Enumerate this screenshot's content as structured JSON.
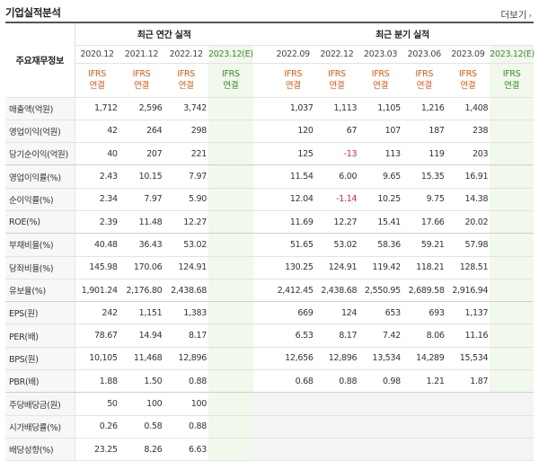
{
  "title": "기업실적분석",
  "more_label": "더보기",
  "header": {
    "row_label": "주요재무정보",
    "annual_group": "최근 연간 실적",
    "quarter_group": "최근 분기 실적",
    "annual_periods": [
      "2020.12",
      "2021.12",
      "2022.12",
      "2023.12(E)"
    ],
    "quarter_periods": [
      "2022.09",
      "2022.12",
      "2023.03",
      "2023.06",
      "2023.09",
      "2023.12(E)"
    ],
    "accounting_line1": "IFRS",
    "accounting_line2": "연결"
  },
  "rows": [
    {
      "label": "매출액(억원)",
      "annual": [
        "1,712",
        "2,596",
        "3,742",
        ""
      ],
      "quarter": [
        "1,037",
        "1,113",
        "1,105",
        "1,216",
        "1,408",
        ""
      ]
    },
    {
      "label": "영업이익(억원)",
      "annual": [
        "42",
        "264",
        "298",
        ""
      ],
      "quarter": [
        "120",
        "67",
        "107",
        "187",
        "238",
        ""
      ]
    },
    {
      "label": "당기순이익(억원)",
      "annual": [
        "40",
        "207",
        "221",
        ""
      ],
      "quarter": [
        "125",
        "-13",
        "113",
        "119",
        "203",
        ""
      ]
    },
    {
      "label": "영업이익률(%)",
      "annual": [
        "2.43",
        "10.15",
        "7.97",
        ""
      ],
      "quarter": [
        "11.54",
        "6.00",
        "9.65",
        "15.35",
        "16.91",
        ""
      ]
    },
    {
      "label": "순이익률(%)",
      "annual": [
        "2.34",
        "7.97",
        "5.90",
        ""
      ],
      "quarter": [
        "12.04",
        "-1.14",
        "10.25",
        "9.75",
        "14.38",
        ""
      ]
    },
    {
      "label": "ROE(%)",
      "annual": [
        "2.39",
        "11.48",
        "12.27",
        ""
      ],
      "quarter": [
        "11.69",
        "12.27",
        "15.41",
        "17.66",
        "20.02",
        ""
      ]
    },
    {
      "label": "부채비율(%)",
      "annual": [
        "40.48",
        "36.43",
        "53.02",
        ""
      ],
      "quarter": [
        "51.65",
        "53.02",
        "58.36",
        "59.21",
        "57.98",
        ""
      ]
    },
    {
      "label": "당좌비율(%)",
      "annual": [
        "145.98",
        "170.06",
        "124.91",
        ""
      ],
      "quarter": [
        "130.25",
        "124.91",
        "119.42",
        "118.21",
        "128.51",
        ""
      ]
    },
    {
      "label": "유보율(%)",
      "annual": [
        "1,901.24",
        "2,176.80",
        "2,438.68",
        ""
      ],
      "quarter": [
        "2,412.45",
        "2,438.68",
        "2,550.95",
        "2,689.58",
        "2,916.94",
        ""
      ]
    },
    {
      "label": "EPS(원)",
      "annual": [
        "242",
        "1,151",
        "1,383",
        ""
      ],
      "quarter": [
        "669",
        "124",
        "653",
        "693",
        "1,137",
        ""
      ]
    },
    {
      "label": "PER(배)",
      "annual": [
        "78.67",
        "14.94",
        "8.17",
        ""
      ],
      "quarter": [
        "6.53",
        "8.17",
        "7.42",
        "8.06",
        "11.16",
        ""
      ]
    },
    {
      "label": "BPS(원)",
      "annual": [
        "10,105",
        "11,468",
        "12,896",
        ""
      ],
      "quarter": [
        "12,656",
        "12,896",
        "13,534",
        "14,289",
        "15,534",
        ""
      ]
    },
    {
      "label": "PBR(배)",
      "annual": [
        "1.88",
        "1.50",
        "0.88",
        ""
      ],
      "quarter": [
        "0.68",
        "0.88",
        "0.98",
        "1.21",
        "1.87",
        ""
      ]
    },
    {
      "label": "주당배당금(원)",
      "annual": [
        "50",
        "100",
        "100",
        ""
      ],
      "quarter": [
        "",
        "",
        "",
        "",
        "",
        ""
      ]
    },
    {
      "label": "시가배당률(%)",
      "annual": [
        "0.26",
        "0.58",
        "0.88",
        ""
      ],
      "quarter": [
        "",
        "",
        "",
        "",
        "",
        ""
      ]
    },
    {
      "label": "배당성향(%)",
      "annual": [
        "23.25",
        "8.26",
        "6.63",
        ""
      ],
      "quarter": [
        "",
        "",
        "",
        "",
        "",
        ""
      ]
    }
  ],
  "colors": {
    "negative": "#e8203a",
    "estimate_bg": "#f1f8ec",
    "estimate_text": "#3c8a2e",
    "accounting_text": "#e05a10"
  }
}
